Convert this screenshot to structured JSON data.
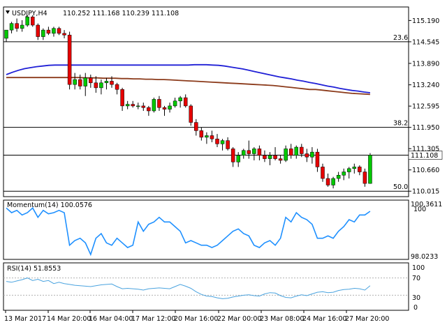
{
  "header": {
    "symbol": "USDJPY,H4",
    "ohlc": "110.252 111.168 110.239 111.108"
  },
  "main_panel": {
    "price_axis": [
      "115.190",
      "114.545",
      "113.890",
      "113.240",
      "112.595",
      "111.950",
      "111.305",
      "110.660",
      "110.015"
    ],
    "current_price": "111.108",
    "fib_levels": [
      {
        "label": "23.6",
        "price": 114.545
      },
      {
        "label": "38.2",
        "price": 111.95
      },
      {
        "label": "50.0",
        "price": 110.015
      }
    ],
    "current_price_value": 111.108
  },
  "momentum_panel": {
    "title": "Momentum(14) 100.0576",
    "axis_top": "100.3611",
    "axis_ref": "100",
    "axis_bottom": "98.0233"
  },
  "rsi_panel": {
    "title": "RSI(14) 51.8553",
    "axis_labels": [
      "100",
      "70",
      "30",
      "0"
    ]
  },
  "time_axis": [
    "13 Mar 2017",
    "14 Mar 20:00",
    "16 Mar 04:00",
    "17 Mar 12:00",
    "20 Mar 16:00",
    "22 Mar 00:00",
    "23 Mar 08:00",
    "24 Mar 16:00",
    "27 Mar 20:00"
  ],
  "colors": {
    "bull": "#00c800",
    "bear": "#e60000",
    "wick": "#000000",
    "ma_fast": "#1f1fd6",
    "ma_slow": "#8b3a1a",
    "indicator_line": "#1e90ff",
    "rsi_line": "#4aa3df"
  },
  "chart_data": {
    "type": "candlestick",
    "candles": [
      [
        114.65,
        114.9,
        114.55,
        114.9
      ],
      [
        114.9,
        115.15,
        114.8,
        115.1
      ],
      [
        115.1,
        115.25,
        114.85,
        114.95
      ],
      [
        114.95,
        115.2,
        114.85,
        115.05
      ],
      [
        115.05,
        115.35,
        115.0,
        115.3
      ],
      [
        115.3,
        115.35,
        115.0,
        115.05
      ],
      [
        115.05,
        115.1,
        114.6,
        114.7
      ],
      [
        114.7,
        114.95,
        114.6,
        114.9
      ],
      [
        114.9,
        115.0,
        114.75,
        114.8
      ],
      [
        114.8,
        115.0,
        114.7,
        114.95
      ],
      [
        114.95,
        115.0,
        114.75,
        114.8
      ],
      [
        114.8,
        114.9,
        114.65,
        114.75
      ],
      [
        114.75,
        114.85,
        113.1,
        113.25
      ],
      [
        113.25,
        113.6,
        113.1,
        113.4
      ],
      [
        113.4,
        113.55,
        113.1,
        113.2
      ],
      [
        113.2,
        113.6,
        112.9,
        113.45
      ],
      [
        113.45,
        113.55,
        113.15,
        113.3
      ],
      [
        113.3,
        113.5,
        113.0,
        113.15
      ],
      [
        113.15,
        113.4,
        112.95,
        113.3
      ],
      [
        113.3,
        113.45,
        113.1,
        113.35
      ],
      [
        113.35,
        113.5,
        113.15,
        113.25
      ],
      [
        113.25,
        113.3,
        112.95,
        113.1
      ],
      [
        113.1,
        113.15,
        112.45,
        112.6
      ],
      [
        112.6,
        112.75,
        112.5,
        112.65
      ],
      [
        112.65,
        112.75,
        112.55,
        112.6
      ],
      [
        112.6,
        112.7,
        112.5,
        112.6
      ],
      [
        112.6,
        112.7,
        112.45,
        112.55
      ],
      [
        112.55,
        112.6,
        112.3,
        112.45
      ],
      [
        112.45,
        112.85,
        112.4,
        112.8
      ],
      [
        112.8,
        112.9,
        112.45,
        112.55
      ],
      [
        112.55,
        112.6,
        112.3,
        112.5
      ],
      [
        112.5,
        112.7,
        112.4,
        112.6
      ],
      [
        112.6,
        112.85,
        112.55,
        112.75
      ],
      [
        112.75,
        112.9,
        112.55,
        112.85
      ],
      [
        112.85,
        112.95,
        112.55,
        112.6
      ],
      [
        112.6,
        112.65,
        112.0,
        112.1
      ],
      [
        112.1,
        112.2,
        111.7,
        111.85
      ],
      [
        111.85,
        111.95,
        111.55,
        111.65
      ],
      [
        111.65,
        111.8,
        111.45,
        111.7
      ],
      [
        111.7,
        111.85,
        111.5,
        111.6
      ],
      [
        111.6,
        111.75,
        111.35,
        111.45
      ],
      [
        111.45,
        111.6,
        111.25,
        111.55
      ],
      [
        111.55,
        111.65,
        111.25,
        111.3
      ],
      [
        111.3,
        111.35,
        110.75,
        110.9
      ],
      [
        110.9,
        111.2,
        110.75,
        111.1
      ],
      [
        111.1,
        111.3,
        111.0,
        111.25
      ],
      [
        111.25,
        111.55,
        111.0,
        111.15
      ],
      [
        111.15,
        111.35,
        110.95,
        111.3
      ],
      [
        111.3,
        111.4,
        110.95,
        111.1
      ],
      [
        111.1,
        111.25,
        110.9,
        111.0
      ],
      [
        111.0,
        111.2,
        110.8,
        111.1
      ],
      [
        111.1,
        111.35,
        110.95,
        111.0
      ],
      [
        111.0,
        111.1,
        110.85,
        110.95
      ],
      [
        110.95,
        111.4,
        110.9,
        111.3
      ],
      [
        111.3,
        111.45,
        111.0,
        111.1
      ],
      [
        111.1,
        111.4,
        111.0,
        111.35
      ],
      [
        111.35,
        111.45,
        111.05,
        111.15
      ],
      [
        111.15,
        111.3,
        110.9,
        111.05
      ],
      [
        111.05,
        111.35,
        110.85,
        111.2
      ],
      [
        111.2,
        111.3,
        110.6,
        110.75
      ],
      [
        110.75,
        110.85,
        110.3,
        110.4
      ],
      [
        110.4,
        110.55,
        110.15,
        110.2
      ],
      [
        110.2,
        110.45,
        110.1,
        110.4
      ],
      [
        110.4,
        110.6,
        110.3,
        110.5
      ],
      [
        110.5,
        110.7,
        110.35,
        110.6
      ],
      [
        110.6,
        110.75,
        110.4,
        110.7
      ],
      [
        110.7,
        110.85,
        110.55,
        110.75
      ],
      [
        110.75,
        110.8,
        110.5,
        110.6
      ],
      [
        110.6,
        110.7,
        110.15,
        110.25
      ],
      [
        110.25,
        111.17,
        110.24,
        111.108
      ]
    ],
    "ma_fast": [
      113.55,
      113.62,
      113.68,
      113.73,
      113.76,
      113.79,
      113.81,
      113.83,
      113.84,
      113.84,
      113.84,
      113.84,
      113.84,
      113.84,
      113.84,
      113.84,
      113.84,
      113.84,
      113.84,
      113.84,
      113.84,
      113.84,
      113.84,
      113.84,
      113.84,
      113.84,
      113.84,
      113.84,
      113.84,
      113.84,
      113.84,
      113.85,
      113.85,
      113.85,
      113.84,
      113.83,
      113.81,
      113.78,
      113.75,
      113.72,
      113.68,
      113.64,
      113.6,
      113.56,
      113.52,
      113.48,
      113.45,
      113.42,
      113.38,
      113.35,
      113.31,
      113.28,
      113.24,
      113.2,
      113.17,
      113.13,
      113.1,
      113.07,
      113.05,
      113.02,
      113.0
    ],
    "ma_slow": [
      113.46,
      113.46,
      113.46,
      113.46,
      113.46,
      113.46,
      113.46,
      113.46,
      113.46,
      113.46,
      113.46,
      113.46,
      113.46,
      113.45,
      113.45,
      113.45,
      113.44,
      113.44,
      113.44,
      113.43,
      113.43,
      113.42,
      113.42,
      113.41,
      113.41,
      113.4,
      113.4,
      113.39,
      113.38,
      113.37,
      113.36,
      113.35,
      113.34,
      113.33,
      113.32,
      113.31,
      113.3,
      113.29,
      113.28,
      113.27,
      113.26,
      113.25,
      113.24,
      113.23,
      113.22,
      113.2,
      113.18,
      113.16,
      113.14,
      113.12,
      113.1,
      113.1,
      113.08,
      113.06,
      113.04,
      113.02,
      113.0,
      112.98,
      112.97,
      112.96,
      112.95
    ],
    "momentum": [
      100.2,
      100.0,
      100.1,
      99.9,
      100.0,
      100.2,
      99.8,
      100.1,
      99.95,
      100.0,
      100.1,
      100.0,
      98.6,
      98.8,
      98.9,
      98.7,
      98.2,
      98.9,
      99.1,
      98.7,
      98.6,
      98.9,
      98.7,
      98.5,
      98.6,
      99.6,
      99.2,
      99.5,
      99.6,
      99.8,
      99.6,
      99.6,
      99.4,
      99.2,
      98.7,
      98.8,
      98.7,
      98.6,
      98.6,
      98.5,
      98.6,
      98.8,
      99.0,
      99.2,
      99.3,
      99.1,
      99.0,
      98.6,
      98.5,
      98.7,
      98.8,
      98.6,
      98.9,
      99.8,
      99.6,
      100.0,
      99.8,
      99.7,
      99.5,
      98.9,
      98.9,
      99.0,
      98.9,
      99.2,
      99.4,
      99.7,
      99.6,
      99.9,
      99.9,
      100.06
    ],
    "rsi": [
      62,
      60,
      63,
      66,
      70,
      64,
      67,
      62,
      64,
      57,
      60,
      57,
      55,
      53,
      52,
      51,
      50,
      52,
      54,
      55,
      56,
      50,
      45,
      46,
      45,
      44,
      42,
      45,
      46,
      47,
      46,
      45,
      50,
      55,
      51,
      46,
      38,
      32,
      28,
      27,
      24,
      22,
      23,
      26,
      28,
      30,
      31,
      29,
      28,
      33,
      36,
      35,
      29,
      25,
      24,
      28,
      31,
      29,
      33,
      37,
      38,
      36,
      37,
      41,
      43,
      44,
      46,
      45,
      42,
      51.86
    ]
  }
}
